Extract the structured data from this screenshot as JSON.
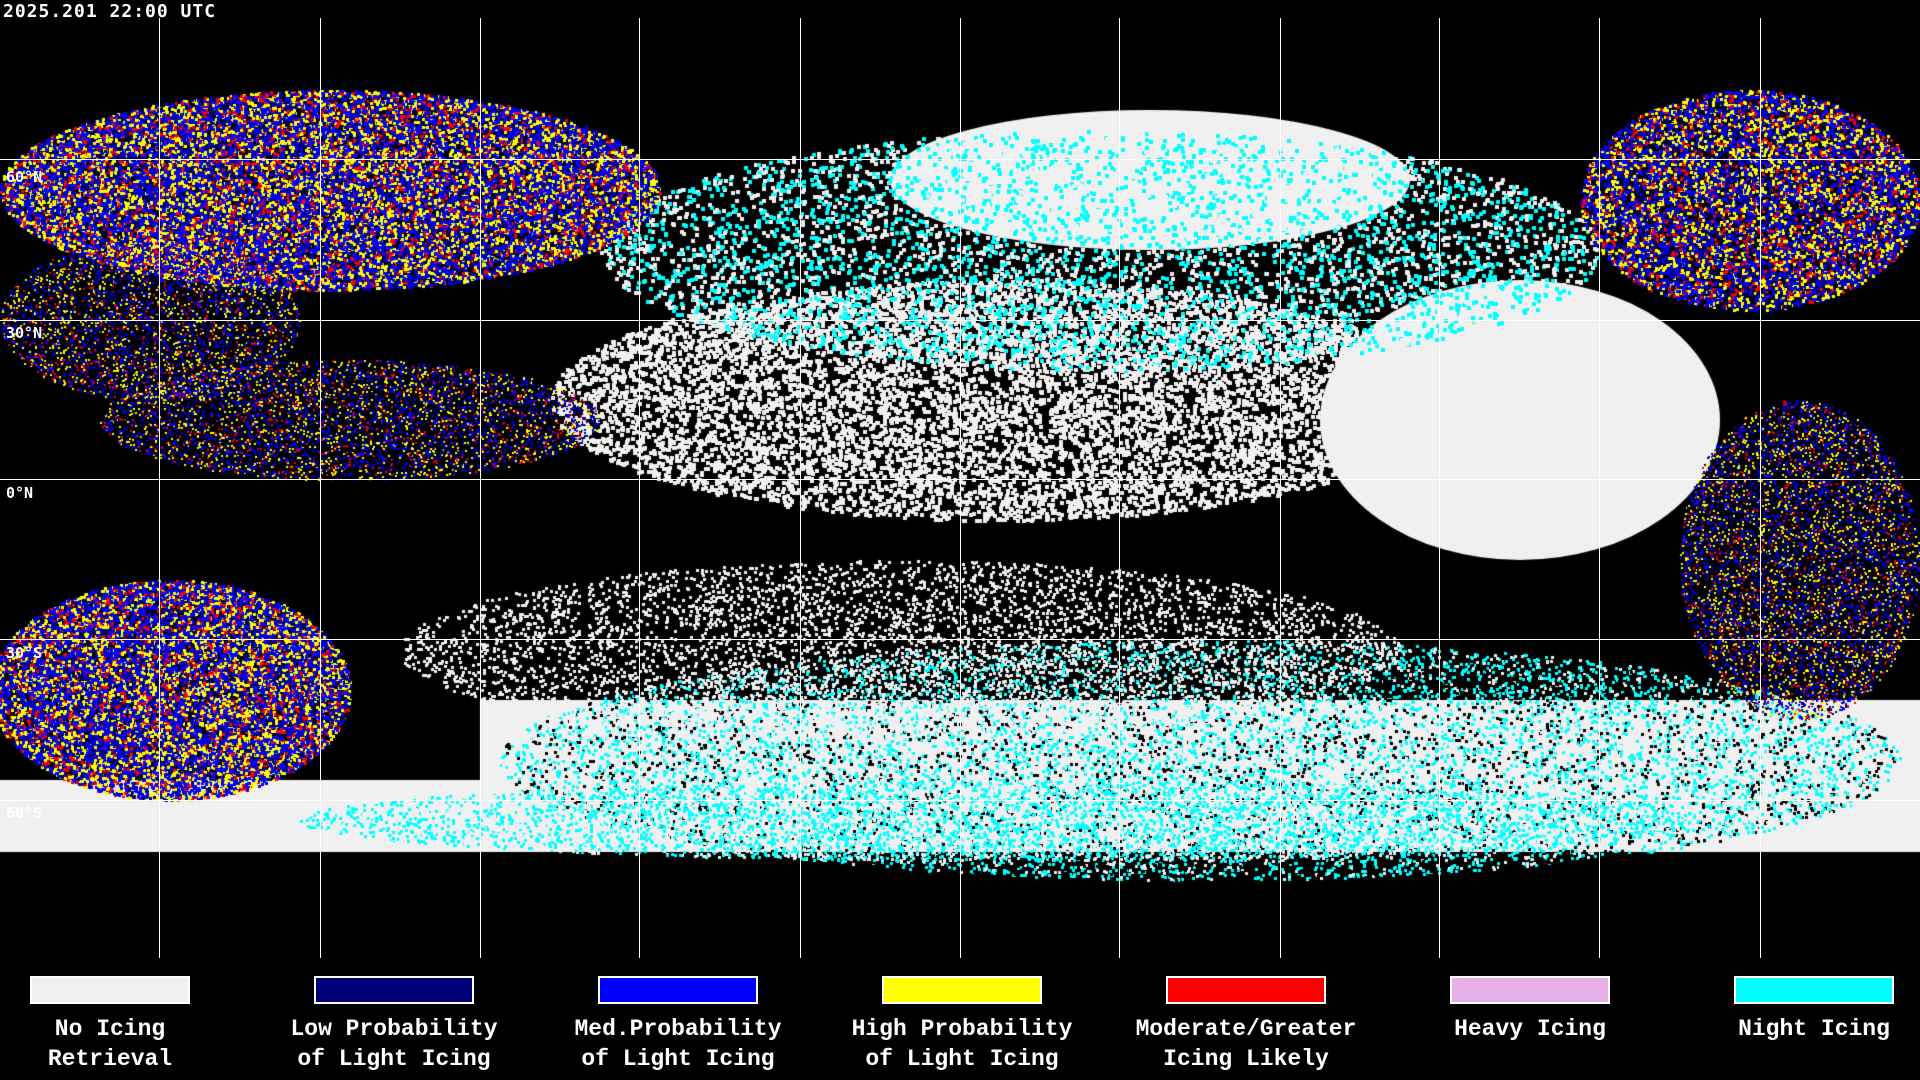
{
  "timestamp": "2025.201 22:00 UTC",
  "map": {
    "lat_labels": [
      "60°N",
      "30°N",
      "0°N",
      "30°S",
      "60°S"
    ]
  },
  "legend": [
    {
      "label": "No Icing\nRetrieval",
      "color": "#f0f0f0"
    },
    {
      "label": "Low Probability\nof Light Icing",
      "color": "#000078"
    },
    {
      "label": "Med.Probability\nof Light Icing",
      "color": "#0000ff"
    },
    {
      "label": "High Probability\nof Light Icing",
      "color": "#ffff00"
    },
    {
      "label": "Moderate/Greater\nIcing Likely",
      "color": "#ff0000"
    },
    {
      "label": "Heavy Icing",
      "color": "#e8b0e8"
    },
    {
      "label": "Night Icing",
      "color": "#00ffff"
    }
  ]
}
